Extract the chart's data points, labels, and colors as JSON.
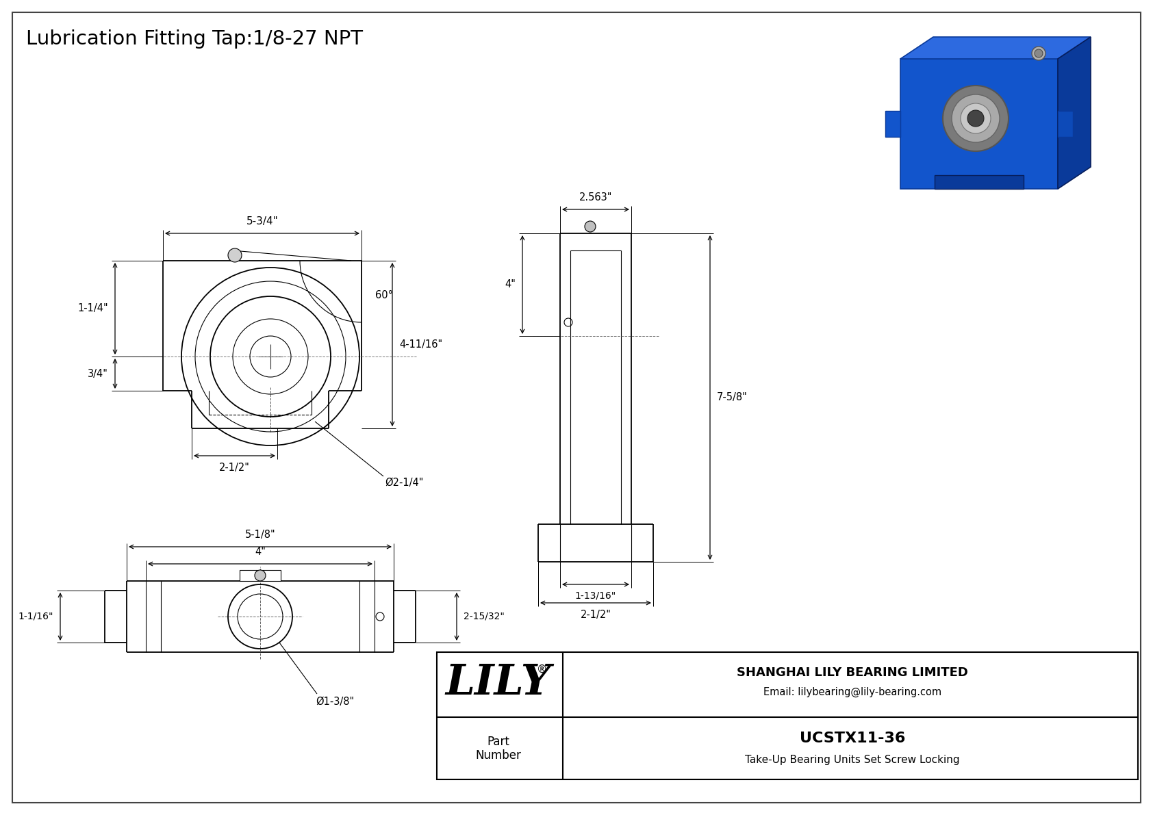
{
  "title": "Lubrication Fitting Tap:1/8-27 NPT",
  "bg_color": "#ffffff",
  "line_color": "#000000",
  "title_box": {
    "company": "SHANGHAI LILY BEARING LIMITED",
    "email": "Email: lilybearing@lily-bearing.com",
    "lily_text": "LILY",
    "registered": "®",
    "part_number_label": "Part\nNumber",
    "part_number": "UCSTX11-36",
    "description": "Take-Up Bearing Units Set Screw Locking"
  },
  "dims": {
    "front_width": "5-3/4\"",
    "front_height": "4-11/16\"",
    "front_h1": "1-1/4\"",
    "front_h2": "3/4\"",
    "front_w2": "2-1/2\"",
    "front_dia": "Ø2-1/4\"",
    "front_angle": "60°",
    "side_width": "2.563\"",
    "side_h1": "4\"",
    "side_h2": "7-5/8\"",
    "side_w1": "1-13/16\"",
    "side_w2": "2-1/2\"",
    "bot_w1": "5-1/8\"",
    "bot_w2": "4\"",
    "bot_h1": "2-15/32\"",
    "bot_h2": "1-1/16\"",
    "bot_dia": "Ø1-3/8\""
  }
}
